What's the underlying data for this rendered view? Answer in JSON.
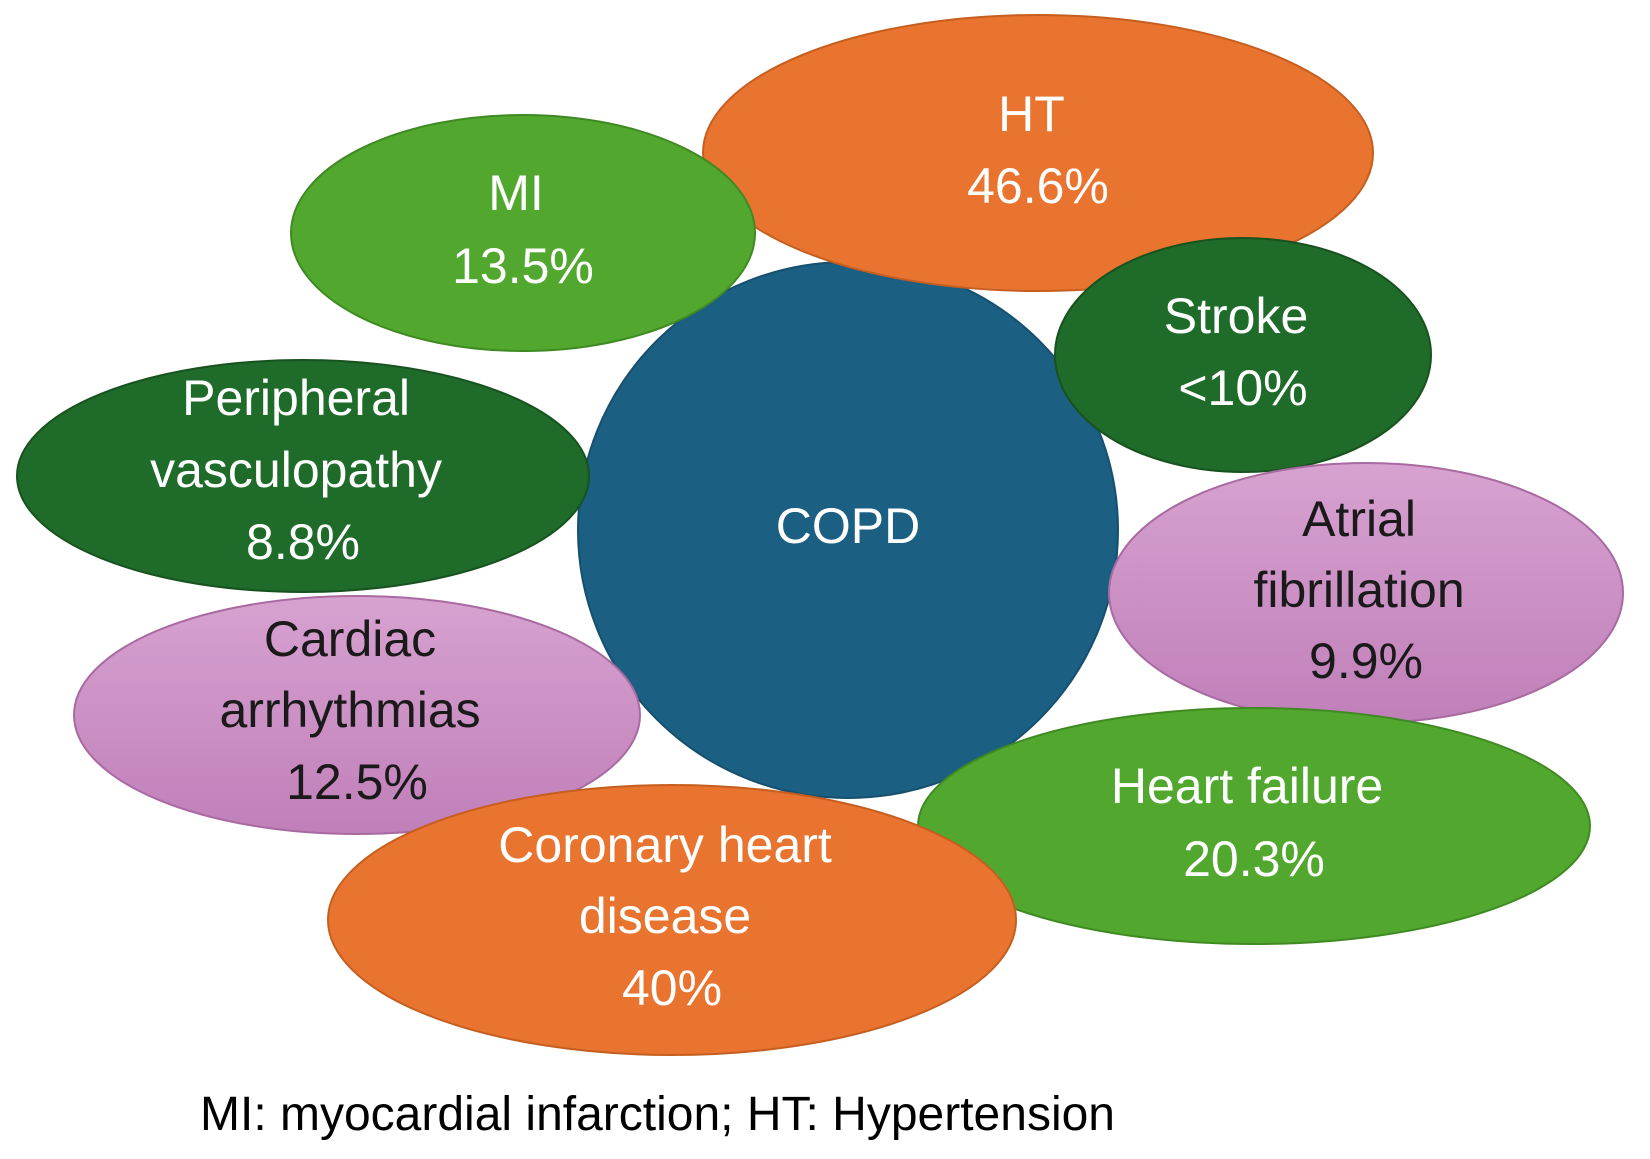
{
  "center": {
    "label": "COPD",
    "color": "#1b5f82",
    "text_color": "#ffffff"
  },
  "conditions": [
    {
      "id": "ht",
      "lines": [
        "HT",
        "46.6%"
      ],
      "color": "#e8742f",
      "text_color": "#ffffff"
    },
    {
      "id": "mi",
      "lines": [
        "MI",
        "13.5%"
      ],
      "color": "#52a82f",
      "text_color": "#ffffff"
    },
    {
      "id": "stroke",
      "lines": [
        "Stroke",
        "<10%"
      ],
      "color": "#1f6b2a",
      "text_color": "#ffffff"
    },
    {
      "id": "peripheral-vasculopathy",
      "lines": [
        "Peripheral",
        "vasculopathy",
        "8.8%"
      ],
      "color": "#1f6b2a",
      "text_color": "#ffffff"
    },
    {
      "id": "atrial-fibrillation",
      "lines": [
        "Atrial",
        "fibrillation",
        "9.9%"
      ],
      "color": "#cf93c8",
      "text_color": "#1a1a1a"
    },
    {
      "id": "cardiac-arrhythmias",
      "lines": [
        "Cardiac",
        "arrhythmias",
        "12.5%"
      ],
      "color": "#cf93c8",
      "text_color": "#1a1a1a"
    },
    {
      "id": "heart-failure",
      "lines": [
        "Heart failure",
        "20.3%"
      ],
      "color": "#52a82f",
      "text_color": "#ffffff"
    },
    {
      "id": "coronary-heart-disease",
      "lines": [
        "Coronary heart",
        "disease",
        "40%"
      ],
      "color": "#e8742f",
      "text_color": "#ffffff"
    }
  ],
  "footnote": "MI: myocardial infarction; HT: Hypertension"
}
